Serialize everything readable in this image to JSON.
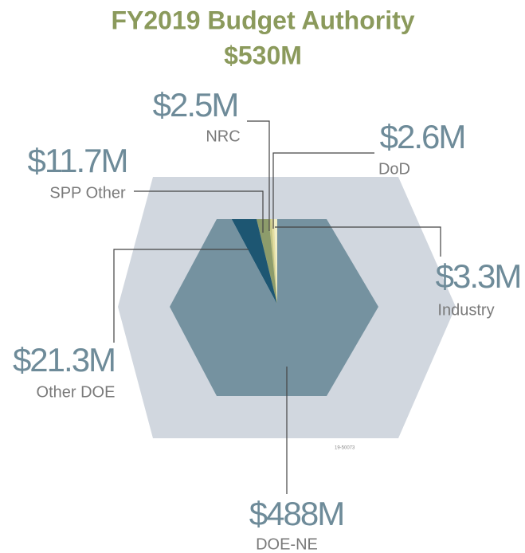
{
  "chart_data": {
    "type": "pie",
    "title": "FY2019 Budget Authority",
    "subtitle": "$530M",
    "categories": [
      "Industry",
      "DoD",
      "NRC",
      "SPP Other",
      "Other DOE",
      "DOE-NE"
    ],
    "values": [
      3.3,
      2.6,
      2.5,
      11.7,
      21.3,
      488
    ],
    "value_labels": [
      "$3.3M",
      "$2.6M",
      "$2.5M",
      "$11.7M",
      "$21.3M",
      "$488M"
    ],
    "colors": [
      "#f1eec6",
      "#e4dea0",
      "#c6c785",
      "#8d9c6b",
      "#1d5672",
      "#7592a0"
    ],
    "code": "19-50073"
  }
}
